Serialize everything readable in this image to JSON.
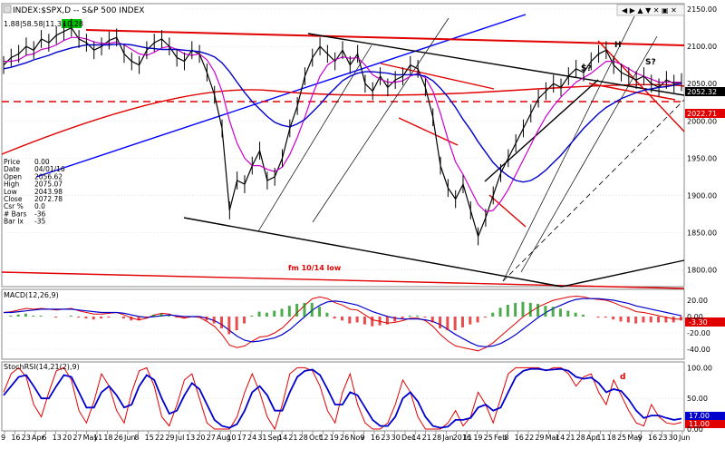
{
  "header": {
    "title": "INDEX:$SPX,D -- S&P 500 INDEX",
    "ohlc": "1.88|58.58|11.32|",
    "last": "10.28"
  },
  "readout": {
    "labels": [
      "Price",
      "Date",
      "Open",
      "High",
      "Low",
      "Close",
      "Csr %",
      "# Bars",
      "Bar Ix"
    ],
    "values": [
      "0.00",
      "04/01/16",
      "2056.62",
      "2075.07",
      "2043.98",
      "2072.78",
      "0.0",
      "-36",
      "-35"
    ]
  },
  "annotations": {
    "s1": "S?",
    "h": "H",
    "s2": "S?",
    "fm": "fm 10/14 low",
    "d": "d"
  },
  "colors": {
    "price": "#000000",
    "ma_short": "#cc00cc",
    "ma_long": "#0000cc",
    "red": "#e00000",
    "blue_trend": "#0000ff",
    "panel_line": "#555555",
    "green": "#008800"
  },
  "chart_data": [
    {
      "type": "line",
      "title": "",
      "ylim": [
        1780,
        2155
      ],
      "yticks": [
        2150,
        2100,
        2050,
        2000,
        1950,
        1900,
        1850,
        1800
      ],
      "y_tick_labels": [
        "2150.00",
        "2100.00",
        "2050.00",
        "2000.00",
        "1950.00",
        "1900.00",
        "1850.00",
        "1800.00"
      ],
      "x_tick_labels": [
        "9",
        "16",
        "23",
        "Apr",
        "6",
        "13",
        "20",
        "27",
        "May",
        "11",
        "18",
        "26",
        "Jun",
        "8",
        "15",
        "22",
        "29",
        "Jul",
        "13",
        "20",
        "27",
        "Aug",
        "10",
        "17",
        "24",
        "31",
        "Sep",
        "14",
        "21",
        "28",
        "Oct",
        "12",
        "19",
        "26",
        "Nov",
        "9",
        "16",
        "23",
        "30",
        "Dec",
        "14",
        "21",
        "28",
        "Jan",
        "2016",
        "11",
        "19",
        "25",
        "Feb",
        "8",
        "16",
        "22",
        "29",
        "Mar",
        "14",
        "21",
        "28",
        "Apr",
        "11",
        "18",
        "25",
        "May",
        "9",
        "16",
        "23",
        "30",
        "Jun"
      ],
      "month_labels": [
        "Apr",
        "May",
        "Jun",
        "Jul",
        "Aug",
        "Sep",
        "Oct",
        "Nov",
        "Dec",
        "Jan 2016",
        "Feb",
        "Mar",
        "Apr",
        "May",
        "Jun"
      ],
      "series": [
        {
          "values": [
            2075,
            2085,
            2090,
            2100,
            2095,
            2110,
            2105,
            2115,
            2120,
            2125,
            2110,
            2105,
            2095,
            2100,
            2108,
            2112,
            2090,
            2080,
            2075,
            2095,
            2105,
            2110,
            2100,
            2085,
            2080,
            2095,
            2090,
            2065,
            2035,
            1990,
            1880,
            1920,
            1915,
            1940,
            1960,
            1920,
            1925,
            1950,
            1990,
            2020,
            2060,
            2085,
            2100,
            2090,
            2080,
            2095,
            2075,
            2090,
            2050,
            2040,
            2060,
            2045,
            2055,
            2060,
            2075,
            2070,
            2045,
            2005,
            1940,
            1910,
            1895,
            1915,
            1880,
            1845,
            1870,
            1900,
            1930,
            1950,
            1970,
            1990,
            2010,
            2030,
            2040,
            2050,
            2045,
            2060,
            2070,
            2065,
            2080,
            2090,
            2095,
            2075,
            2065,
            2060,
            2055,
            2060,
            2050,
            2045,
            2055,
            2050,
            2052
          ]
        },
        {
          "values": [
            2080,
            2080,
            2082,
            2088,
            2090,
            2096,
            2098,
            2102,
            2108,
            2112,
            2112,
            2110,
            2106,
            2104,
            2104,
            2106,
            2102,
            2096,
            2090,
            2088,
            2092,
            2098,
            2100,
            2096,
            2090,
            2088,
            2090,
            2082,
            2066,
            2040,
            2000,
            1970,
            1950,
            1940,
            1940,
            1935,
            1932,
            1938,
            1955,
            1978,
            2005,
            2035,
            2060,
            2075,
            2082,
            2086,
            2084,
            2085,
            2075,
            2062,
            2056,
            2052,
            2052,
            2054,
            2060,
            2064,
            2058,
            2040,
            2010,
            1975,
            1945,
            1928,
            1908,
            1888,
            1878,
            1880,
            1892,
            1908,
            1928,
            1948,
            1968,
            1988,
            2006,
            2020,
            2032,
            2042,
            2052,
            2058,
            2064,
            2072,
            2080,
            2080,
            2076,
            2070,
            2064,
            2060,
            2056,
            2052,
            2052,
            2052,
            2052
          ]
        },
        {
          "values": [
            2070,
            2072,
            2075,
            2078,
            2082,
            2085,
            2088,
            2092,
            2095,
            2098,
            2100,
            2102,
            2102,
            2102,
            2102,
            2103,
            2103,
            2102,
            2100,
            2098,
            2097,
            2096,
            2096,
            2096,
            2095,
            2094,
            2093,
            2090,
            2086,
            2078,
            2066,
            2052,
            2038,
            2026,
            2016,
            2006,
            1998,
            1994,
            1992,
            1996,
            2002,
            2012,
            2022,
            2034,
            2044,
            2054,
            2060,
            2064,
            2066,
            2066,
            2065,
            2064,
            2062,
            2062,
            2062,
            2062,
            2060,
            2054,
            2044,
            2032,
            2018,
            2002,
            1988,
            1972,
            1958,
            1944,
            1934,
            1926,
            1920,
            1918,
            1920,
            1926,
            1934,
            1944,
            1954,
            1966,
            1978,
            1990,
            2000,
            2010,
            2018,
            2024,
            2030,
            2034,
            2038,
            2041,
            2043,
            2045,
            2046,
            2048,
            2050
          ]
        }
      ],
      "price_label": "2052.32",
      "red_label": "2022.71"
    },
    {
      "type": "line",
      "title": "MACD(12,26,9)",
      "ylim": [
        -50,
        30
      ],
      "yticks": [
        20,
        0,
        -20,
        -40
      ],
      "y_tick_labels": [
        "20.00",
        "0.00",
        "-20.00",
        "-40.00"
      ],
      "last_value": "-3.30",
      "series": [
        {
          "values": [
            5,
            6,
            8,
            10,
            9,
            10,
            9,
            8,
            9,
            10,
            7,
            5,
            3,
            3,
            4,
            5,
            2,
            -2,
            -4,
            -2,
            2,
            4,
            3,
            0,
            -2,
            0,
            -1,
            -6,
            -12,
            -22,
            -35,
            -38,
            -36,
            -30,
            -25,
            -24,
            -20,
            -14,
            -5,
            5,
            14,
            22,
            24,
            22,
            17,
            14,
            9,
            8,
            2,
            -4,
            -6,
            -8,
            -7,
            -5,
            -2,
            -2,
            -5,
            -12,
            -22,
            -30,
            -36,
            -38,
            -40,
            -42,
            -38,
            -32,
            -24,
            -16,
            -8,
            0,
            6,
            12,
            16,
            20,
            22,
            24,
            25,
            24,
            22,
            21,
            20,
            17,
            13,
            10,
            6,
            5,
            3,
            1,
            -1,
            -3,
            -3
          ]
        },
        {
          "values": [
            5,
            5,
            6,
            7,
            8,
            9,
            9,
            9,
            9,
            9,
            8,
            7,
            6,
            5,
            5,
            5,
            4,
            2,
            0,
            -1,
            0,
            1,
            2,
            1,
            0,
            0,
            0,
            -2,
            -5,
            -10,
            -17,
            -24,
            -29,
            -31,
            -30,
            -28,
            -26,
            -22,
            -16,
            -8,
            0,
            8,
            14,
            18,
            19,
            18,
            16,
            14,
            10,
            6,
            3,
            0,
            -2,
            -3,
            -3,
            -3,
            -4,
            -6,
            -10,
            -16,
            -22,
            -27,
            -32,
            -36,
            -37,
            -36,
            -33,
            -28,
            -22,
            -15,
            -8,
            -1,
            5,
            10,
            14,
            18,
            21,
            22,
            22,
            22,
            21,
            20,
            18,
            16,
            13,
            11,
            9,
            7,
            5,
            3,
            1
          ]
        }
      ]
    },
    {
      "type": "line",
      "title": "StochRSI(14,21(2),9)",
      "ylim": [
        0,
        105
      ],
      "yticks": [
        100,
        50,
        0
      ],
      "y_tick_labels": [
        "100.00",
        "50.00",
        "0.00"
      ],
      "last_values": [
        "17.00",
        "11.00"
      ],
      "series": [
        {
          "values": [
            60,
            90,
            100,
            85,
            40,
            20,
            60,
            95,
            100,
            80,
            30,
            10,
            45,
            90,
            70,
            30,
            10,
            60,
            95,
            100,
            70,
            20,
            5,
            40,
            80,
            90,
            50,
            10,
            0,
            0,
            0,
            20,
            60,
            90,
            60,
            20,
            0,
            40,
            90,
            100,
            100,
            95,
            70,
            30,
            10,
            60,
            90,
            40,
            10,
            0,
            0,
            10,
            40,
            80,
            60,
            20,
            0,
            0,
            0,
            10,
            30,
            5,
            20,
            60,
            40,
            10,
            50,
            90,
            100,
            100,
            100,
            100,
            95,
            100,
            100,
            90,
            70,
            85,
            90,
            60,
            40,
            80,
            55,
            30,
            10,
            5,
            40,
            20,
            10,
            8,
            11
          ]
        },
        {
          "values": [
            55,
            70,
            85,
            88,
            70,
            50,
            50,
            70,
            88,
            85,
            60,
            35,
            35,
            60,
            70,
            55,
            35,
            40,
            70,
            88,
            80,
            50,
            25,
            30,
            55,
            75,
            65,
            40,
            15,
            5,
            2,
            8,
            30,
            60,
            70,
            55,
            30,
            30,
            60,
            85,
            95,
            97,
            88,
            65,
            40,
            40,
            60,
            55,
            35,
            15,
            5,
            5,
            20,
            50,
            60,
            45,
            20,
            5,
            2,
            4,
            15,
            15,
            18,
            35,
            40,
            30,
            35,
            60,
            85,
            95,
            98,
            98,
            96,
            97,
            98,
            95,
            85,
            82,
            84,
            75,
            60,
            65,
            62,
            48,
            30,
            18,
            22,
            22,
            18,
            15,
            17
          ]
        }
      ]
    }
  ]
}
